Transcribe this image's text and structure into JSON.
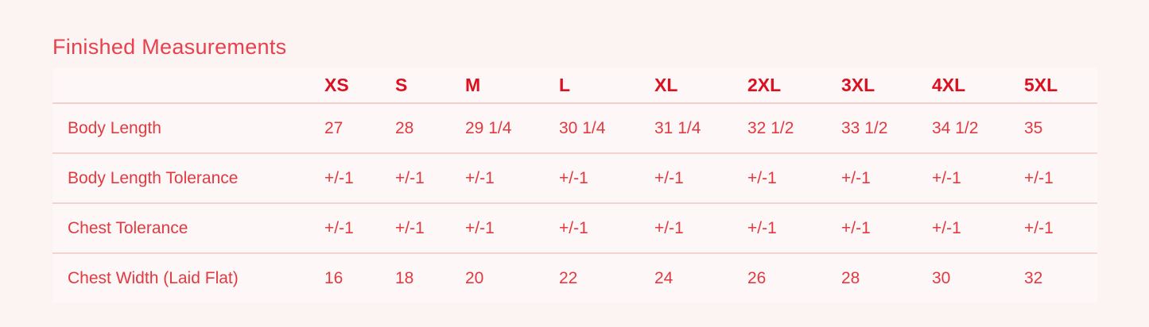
{
  "page": {
    "title": "Finished Measurements",
    "colors": {
      "background": "#fcf4f3",
      "title_red": "#e8414e",
      "header_red": "#db1020",
      "cell_red": "#e23940",
      "divider_pink": "#f2cecd"
    }
  },
  "chart_data": {
    "type": "table",
    "title": "Finished Measurements",
    "columns": [
      "XS",
      "S",
      "M",
      "L",
      "XL",
      "2XL",
      "3XL",
      "4XL",
      "5XL"
    ],
    "rows": [
      {
        "label": "Body Length",
        "values": [
          "27",
          "28",
          "29 1/4",
          "30 1/4",
          "31 1/4",
          "32 1/2",
          "33 1/2",
          "34 1/2",
          "35"
        ]
      },
      {
        "label": "Body Length Tolerance",
        "values": [
          "+/-1",
          "+/-1",
          "+/-1",
          "+/-1",
          "+/-1",
          "+/-1",
          "+/-1",
          "+/-1",
          "+/-1"
        ]
      },
      {
        "label": "Chest Tolerance",
        "values": [
          "+/-1",
          "+/-1",
          "+/-1",
          "+/-1",
          "+/-1",
          "+/-1",
          "+/-1",
          "+/-1",
          "+/-1"
        ]
      },
      {
        "label": "Chest Width (Laid Flat)",
        "values": [
          "16",
          "18",
          "20",
          "22",
          "24",
          "26",
          "28",
          "30",
          "32"
        ]
      }
    ]
  }
}
